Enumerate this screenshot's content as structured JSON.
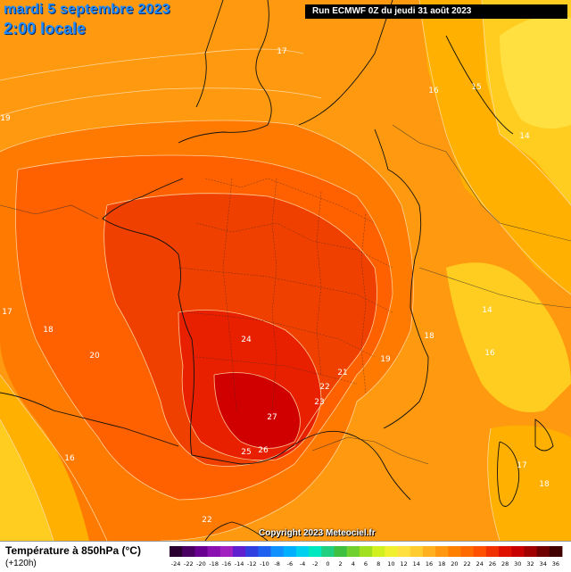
{
  "header": {
    "date": "mardi 5 septembre 2023",
    "time": "2:00 locale",
    "run": "Run ECMWF 0Z du jeudi 31 août 2023"
  },
  "footer": {
    "copyright": "Copyright 2023 Meteociel.fr",
    "legend_title": "Température à 850hPa (°C)",
    "legend_subtitle": "(+120h)"
  },
  "legend": {
    "ticks": [
      "-24",
      "-22",
      "-20",
      "-18",
      "-16",
      "-14",
      "-12",
      "-10",
      "-8",
      "-6",
      "-4",
      "-2",
      "0",
      "2",
      "4",
      "6",
      "8",
      "10",
      "12",
      "14",
      "16",
      "18",
      "20",
      "22",
      "24",
      "26",
      "28",
      "30",
      "32",
      "34",
      "36"
    ],
    "colors": [
      "#2a0030",
      "#4a0060",
      "#6a0090",
      "#8a10b0",
      "#a020c0",
      "#6020d0",
      "#3040e0",
      "#2060f0",
      "#1090ff",
      "#00b0ff",
      "#00d0f0",
      "#00e8c0",
      "#20d080",
      "#40c040",
      "#70d030",
      "#a0e020",
      "#d0f020",
      "#f0f030",
      "#ffe040",
      "#ffcc30",
      "#ffb020",
      "#ff9810",
      "#ff8000",
      "#ff6a00",
      "#ff5000",
      "#f03000",
      "#e01000",
      "#c80000",
      "#a00000",
      "#700000",
      "#400000"
    ]
  },
  "map_labels": [
    {
      "text": "17",
      "name": "contour-label"
    },
    {
      "text": "16",
      "name": "contour-label"
    },
    {
      "text": "15",
      "name": "contour-label"
    },
    {
      "text": "14",
      "name": "contour-label"
    },
    {
      "text": "19",
      "name": "contour-label"
    },
    {
      "text": "17",
      "name": "contour-label"
    },
    {
      "text": "18",
      "name": "contour-label"
    },
    {
      "text": "20",
      "name": "contour-label"
    },
    {
      "text": "24",
      "name": "contour-label"
    },
    {
      "text": "21",
      "name": "contour-label"
    },
    {
      "text": "22",
      "name": "contour-label"
    },
    {
      "text": "23",
      "name": "contour-label"
    },
    {
      "text": "27",
      "name": "contour-label"
    },
    {
      "text": "25",
      "name": "contour-label"
    },
    {
      "text": "26",
      "name": "contour-label"
    },
    {
      "text": "19",
      "name": "contour-label"
    },
    {
      "text": "18",
      "name": "contour-label"
    },
    {
      "text": "14",
      "name": "contour-label"
    },
    {
      "text": "16",
      "name": "contour-label"
    },
    {
      "text": "16",
      "name": "contour-label"
    },
    {
      "text": "17",
      "name": "contour-label"
    },
    {
      "text": "18",
      "name": "contour-label"
    },
    {
      "text": "22",
      "name": "contour-label"
    }
  ]
}
